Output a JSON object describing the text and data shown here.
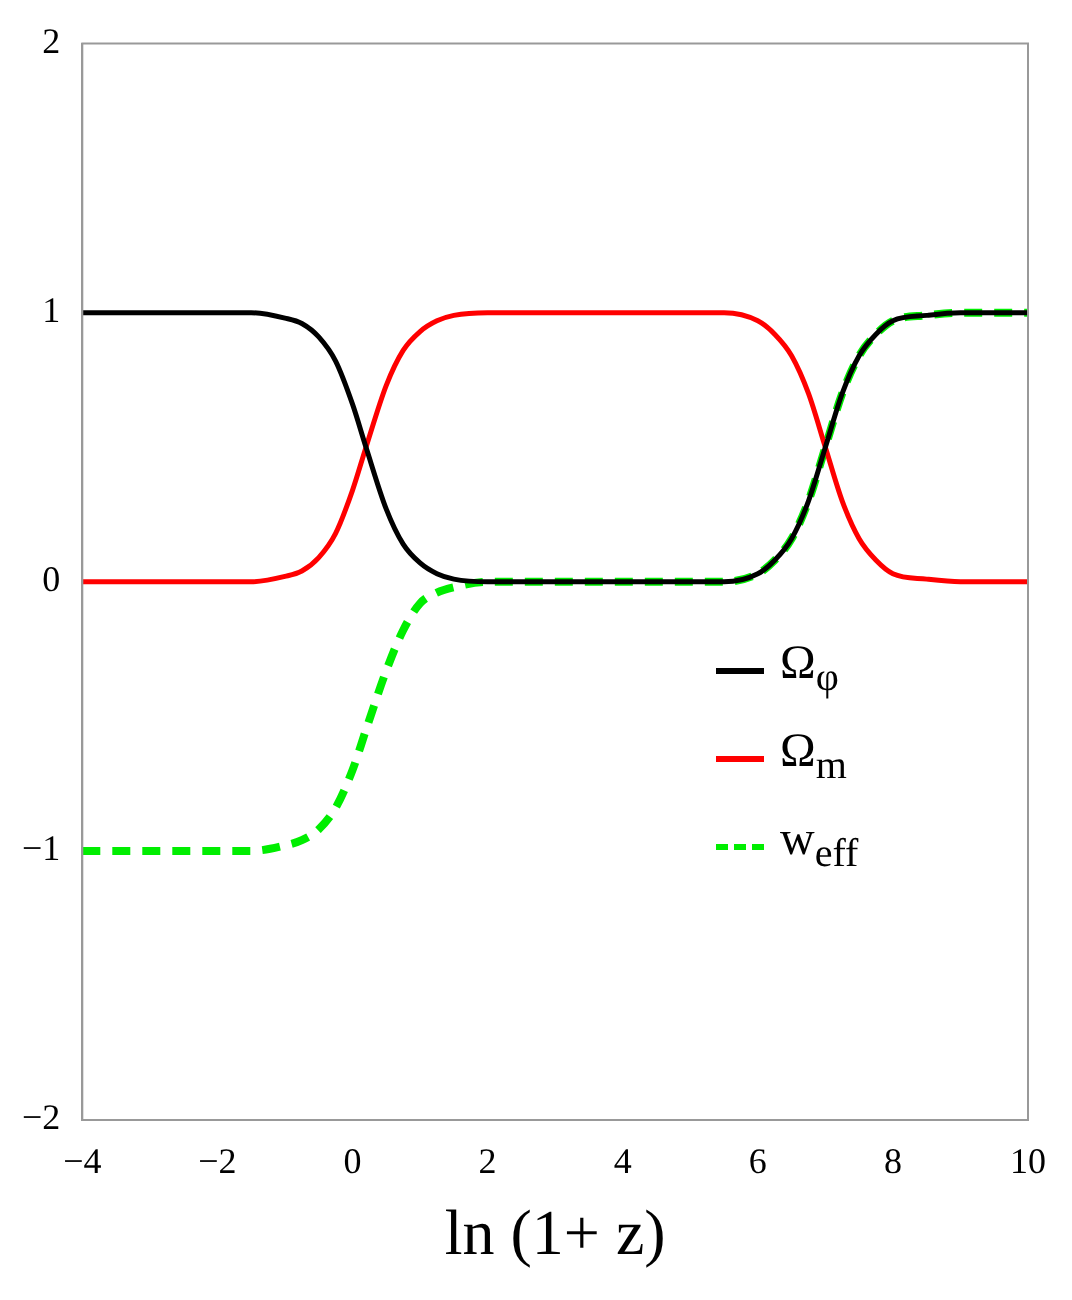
{
  "chart_data": {
    "type": "line",
    "xlabel": "ln (1+ z)",
    "x": [
      -4,
      -3,
      -2,
      -1.5,
      -1,
      -0.75,
      -0.5,
      -0.25,
      0,
      0.2,
      0.5,
      0.75,
      1,
      1.25,
      1.5,
      2,
      2.5,
      3,
      4,
      5,
      5.5,
      6,
      6.25,
      6.5,
      6.75,
      7,
      7.25,
      7.5,
      7.75,
      8,
      8.5,
      9,
      10
    ],
    "series": [
      {
        "name": "Ω$_{φ}$",
        "color": "#000000",
        "values": [
          1,
          1,
          1,
          1,
          0.98,
          0.96,
          0.91,
          0.82,
          0.66,
          0.5,
          0.27,
          0.14,
          0.07,
          0.03,
          0.01,
          0,
          0,
          0,
          0,
          0,
          0,
          0.03,
          0.08,
          0.16,
          0.3,
          0.5,
          0.7,
          0.84,
          0.92,
          0.97,
          0.99,
          1,
          1
        ]
      },
      {
        "name": "Ω$_{m}$",
        "color": "#ff0000",
        "values": [
          0,
          0,
          0,
          0,
          0.02,
          0.04,
          0.09,
          0.18,
          0.34,
          0.5,
          0.73,
          0.86,
          0.93,
          0.97,
          0.99,
          1,
          1,
          1,
          1,
          1,
          1,
          0.97,
          0.92,
          0.84,
          0.7,
          0.5,
          0.3,
          0.16,
          0.08,
          0.03,
          0.01,
          0,
          0
        ]
      },
      {
        "name": "w$_{eff}$",
        "color": "#00ee00",
        "line_style": "dashed",
        "values": [
          -1,
          -1,
          -1,
          -1,
          -0.98,
          -0.96,
          -0.92,
          -0.84,
          -0.7,
          -0.55,
          -0.33,
          -0.18,
          -0.08,
          -0.04,
          -0.02,
          0,
          0,
          0,
          0,
          0,
          0,
          0.03,
          0.08,
          0.16,
          0.3,
          0.5,
          0.7,
          0.84,
          0.92,
          0.97,
          0.99,
          1,
          1
        ]
      }
    ],
    "xlim": [
      -4,
      10
    ],
    "xticks": [
      -4,
      -2,
      0,
      2,
      4,
      6,
      8,
      10
    ],
    "ylim": [
      -2,
      2
    ],
    "yticks": [
      -2,
      -1,
      0,
      1,
      2
    ],
    "grid": false,
    "legend": "right",
    "line_style": "solid",
    "marker": "none"
  }
}
